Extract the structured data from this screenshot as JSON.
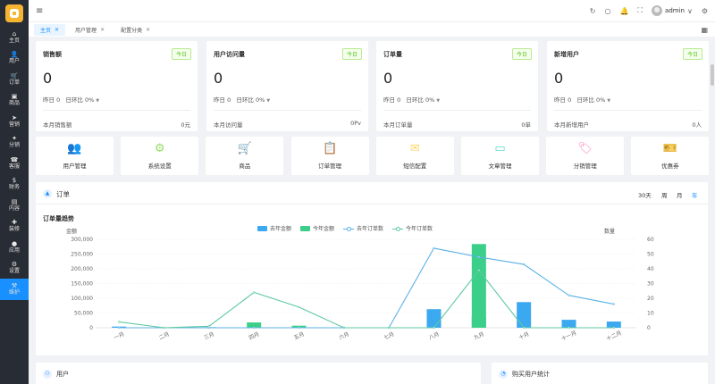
{
  "sidebar": {
    "items": [
      {
        "icon": "⌂",
        "icon_name": "home-icon",
        "label": "主页"
      },
      {
        "icon": "👤",
        "icon_name": "user-icon",
        "label": "用户"
      },
      {
        "icon": "🛒",
        "icon_name": "cart-icon",
        "label": "订单"
      },
      {
        "icon": "▣",
        "icon_name": "goods-icon",
        "label": "商品"
      },
      {
        "icon": "➤",
        "icon_name": "marketing-icon",
        "label": "营销"
      },
      {
        "icon": "✦",
        "icon_name": "distribution-icon",
        "label": "分销"
      },
      {
        "icon": "☎",
        "icon_name": "service-icon",
        "label": "客服"
      },
      {
        "icon": "$",
        "icon_name": "finance-icon",
        "label": "财务"
      },
      {
        "icon": "▤",
        "icon_name": "content-icon",
        "label": "内容"
      },
      {
        "icon": "✚",
        "icon_name": "decoration-icon",
        "label": "装修"
      },
      {
        "icon": "●",
        "icon_name": "app-icon",
        "label": "应用"
      },
      {
        "icon": "⚙",
        "icon_name": "settings-icon",
        "label": "设置"
      },
      {
        "icon": "⚒",
        "icon_name": "maintenance-icon",
        "label": "维护"
      }
    ],
    "active_index": 12
  },
  "header": {
    "menu_icon": "≡",
    "icons": [
      {
        "glyph": "↻",
        "name": "refresh-icon"
      },
      {
        "glyph": "○",
        "name": "search-icon"
      },
      {
        "glyph": "🔔",
        "name": "bell-icon"
      },
      {
        "glyph": "⛶",
        "name": "fullscreen-icon"
      }
    ],
    "username": "admin",
    "chevron": "∨",
    "settings": "⚙"
  },
  "tabs": [
    {
      "label": "主页",
      "active": true
    },
    {
      "label": "用户管理",
      "active": false
    },
    {
      "label": "配置分类",
      "active": false
    }
  ],
  "stats": [
    {
      "title": "销售额",
      "badge": "今日",
      "value": "0",
      "yesterday": "昨日 0",
      "ratio": "日环比 0%",
      "foot_label": "本月销售额",
      "foot_value": "0元"
    },
    {
      "title": "用户访问量",
      "badge": "今日",
      "value": "0",
      "yesterday": "昨日 0",
      "ratio": "日环比 0%",
      "foot_label": "本月访问量",
      "foot_value": "0Pv"
    },
    {
      "title": "订单量",
      "badge": "今日",
      "value": "0",
      "yesterday": "昨日 0",
      "ratio": "日环比 0%",
      "foot_label": "本月订单量",
      "foot_value": "0单"
    },
    {
      "title": "新增用户",
      "badge": "今日",
      "value": "0",
      "yesterday": "昨日 0",
      "ratio": "日环比 0%",
      "foot_label": "本月新增用户",
      "foot_value": "0人"
    }
  ],
  "shortcuts": [
    {
      "label": "用户管理",
      "icon": "👥",
      "icon_name": "users-icon",
      "color": "#69c0ff"
    },
    {
      "label": "系统设置",
      "icon": "⚙",
      "icon_name": "gear-icon",
      "color": "#95de64"
    },
    {
      "label": "商品",
      "icon": "🛒",
      "icon_name": "cart-icon",
      "color": "#ff9c6e"
    },
    {
      "label": "订单管理",
      "icon": "📋",
      "icon_name": "clipboard-icon",
      "color": "#b37feb"
    },
    {
      "label": "短信配置",
      "icon": "✉",
      "icon_name": "mail-icon",
      "color": "#ffd666"
    },
    {
      "label": "文章管理",
      "icon": "▭",
      "icon_name": "card-icon",
      "color": "#5cdbd3"
    },
    {
      "label": "分销管理",
      "icon": "🏷",
      "icon_name": "tag-icon",
      "color": "#ff85c0"
    },
    {
      "label": "优惠券",
      "icon": "🎫",
      "icon_name": "coupon-icon",
      "color": "#ffc53d"
    }
  ],
  "order_panel": {
    "title": "订单",
    "ranges": [
      "30天",
      "周",
      "月",
      "年"
    ],
    "active_range": "年"
  },
  "chart_data": {
    "type": "bar",
    "title": "订单量趋势",
    "categories": [
      "一月",
      "二月",
      "三月",
      "四月",
      "五月",
      "六月",
      "七月",
      "八月",
      "九月",
      "十月",
      "十一月",
      "十二月"
    ],
    "y_left_label": "金额",
    "y_right_label": "数量",
    "ylim_left": [
      0,
      300000
    ],
    "ylim_right": [
      0,
      60
    ],
    "yticks_left": [
      "0",
      "50,000",
      "100,000",
      "150,000",
      "200,000",
      "250,000",
      "300,000"
    ],
    "yticks_right": [
      "0",
      "10",
      "20",
      "30",
      "40",
      "50",
      "60"
    ],
    "legend_position": "top-center",
    "grid": true,
    "series": [
      {
        "name": "去年金额",
        "kind": "bar",
        "axis": "left",
        "color": "#3ba9f0",
        "values": [
          4000,
          0,
          2000,
          0,
          3000,
          0,
          0,
          63000,
          37000,
          87000,
          27000,
          21000
        ]
      },
      {
        "name": "今年金额",
        "kind": "bar",
        "axis": "left",
        "color": "#3ccf8a",
        "values": [
          0,
          0,
          0,
          18000,
          7000,
          0,
          0,
          0,
          284000,
          0,
          0,
          0
        ]
      },
      {
        "name": "去年订单数",
        "kind": "line",
        "axis": "right",
        "color": "#5ab1e6",
        "values": [
          0,
          0,
          0,
          0,
          0,
          0,
          0,
          54,
          48,
          43,
          22,
          16
        ]
      },
      {
        "name": "今年订单数",
        "kind": "line",
        "axis": "right",
        "color": "#5cc9a0",
        "values": [
          4,
          0,
          1,
          24,
          14,
          0,
          0,
          0,
          39,
          0,
          0,
          0
        ]
      }
    ]
  },
  "bottom": {
    "left_title": "用户",
    "right_title": "购买用户统计"
  }
}
